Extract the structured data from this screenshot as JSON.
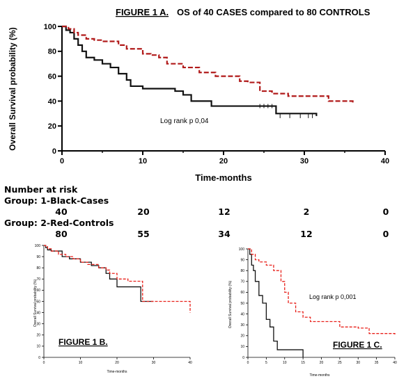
{
  "colors": {
    "cases": "#111111",
    "controls": "#b11a1a",
    "controls_c": "#e8201a",
    "axis": "#000000"
  },
  "chart_data": [
    {
      "type": "line",
      "id": "figure-1a",
      "title": "FIGURE 1 A.",
      "subtitle": "OS of 40 CASES  compared to  80 CONTROLS",
      "xlabel": "Time-months",
      "ylabel": "Overall Survival probability (%)",
      "xlim": [
        0,
        40
      ],
      "ylim": [
        0,
        100
      ],
      "xticks": [
        "0",
        "10",
        "20",
        "30",
        "40"
      ],
      "yticks": [
        "0",
        "20",
        "40",
        "60",
        "80",
        "100"
      ],
      "annotation": "Log rank p 0,04",
      "series": [
        {
          "x": [
            0,
            0.5,
            1,
            1.5,
            2,
            2.5,
            3,
            4,
            5,
            6,
            7,
            8,
            8.5,
            9,
            10,
            12,
            14,
            15,
            16,
            18.5,
            22,
            26.5,
            31.5
          ],
          "y": [
            100,
            97,
            95,
            90,
            85,
            80,
            75,
            73,
            70,
            67,
            62,
            57,
            52,
            52,
            50,
            50,
            48,
            45,
            40,
            36,
            36,
            30,
            28
          ]
        },
        {
          "x": [
            0,
            0.8,
            1.5,
            2,
            3,
            4,
            5,
            7,
            8,
            10,
            11,
            12,
            13,
            15,
            17,
            19,
            22,
            23,
            24.5,
            26,
            28,
            33,
            36
          ],
          "y": [
            100,
            98,
            95,
            93,
            90,
            89,
            88,
            85,
            82,
            78,
            77,
            75,
            70,
            67,
            63,
            60,
            56,
            55,
            48,
            46,
            44,
            40,
            38
          ]
        }
      ],
      "risk_table": {
        "title": "Number at risk",
        "groups": [
          {
            "label": "Group: 1-Black-Cases",
            "values": [
              "40",
              "20",
              "12",
              "2",
              "0"
            ]
          },
          {
            "label": "Group: 2-Red-Controls",
            "values": [
              "80",
              "55",
              "34",
              "12",
              "0"
            ]
          }
        ]
      }
    },
    {
      "type": "line",
      "id": "figure-1b",
      "title": "FIGURE 1 B.",
      "xlabel": "Time-months",
      "ylabel": "Overall Survival probability (%)",
      "xlim": [
        0,
        40
      ],
      "ylim": [
        0,
        100
      ],
      "xticks": [
        "0",
        "10",
        "20",
        "30",
        "40"
      ],
      "yticks": [
        "0",
        "10",
        "20",
        "30",
        "40",
        "50",
        "60",
        "70",
        "80",
        "90",
        "100"
      ],
      "series": [
        {
          "x": [
            0,
            0.5,
            1,
            2,
            5,
            7,
            10,
            13,
            15,
            17,
            18,
            20,
            26,
            26.5,
            30
          ],
          "y": [
            100,
            98,
            96,
            95,
            90,
            88,
            85,
            82,
            80,
            75,
            70,
            63,
            63,
            50,
            50
          ]
        },
        {
          "x": [
            0,
            0.5,
            1,
            2,
            4,
            6,
            8,
            10,
            12,
            15,
            17,
            18,
            20,
            23,
            27,
            30,
            35,
            40
          ],
          "y": [
            100,
            99,
            97,
            95,
            92,
            90,
            88,
            85,
            83,
            80,
            78,
            75,
            70,
            68,
            50,
            50,
            50,
            40
          ]
        }
      ]
    },
    {
      "type": "line",
      "id": "figure-1c",
      "title": "FIGURE 1 C.",
      "xlabel": "Time-months",
      "ylabel": "Overall Survival probability (%)",
      "xlim": [
        0,
        40
      ],
      "ylim": [
        0,
        100
      ],
      "xticks": [
        "0",
        "5",
        "10",
        "15",
        "20",
        "25",
        "30",
        "35",
        "40"
      ],
      "yticks": [
        "0",
        "10",
        "20",
        "30",
        "40",
        "50",
        "60",
        "70",
        "80",
        "90",
        "100"
      ],
      "annotation": "Log rank p 0,001",
      "series": [
        {
          "x": [
            0,
            0.5,
            1,
            1.5,
            2,
            3,
            4,
            5,
            6,
            7,
            8,
            9,
            15
          ],
          "y": [
            100,
            95,
            85,
            80,
            70,
            57,
            50,
            35,
            28,
            15,
            7,
            7,
            0
          ]
        },
        {
          "x": [
            0,
            1,
            2,
            3,
            5,
            7,
            9,
            10,
            11,
            13,
            15,
            17,
            20,
            25,
            30,
            33,
            38,
            40
          ],
          "y": [
            100,
            95,
            90,
            88,
            85,
            80,
            70,
            60,
            50,
            42,
            37,
            33,
            33,
            28,
            27,
            22,
            22,
            20
          ]
        }
      ]
    }
  ]
}
